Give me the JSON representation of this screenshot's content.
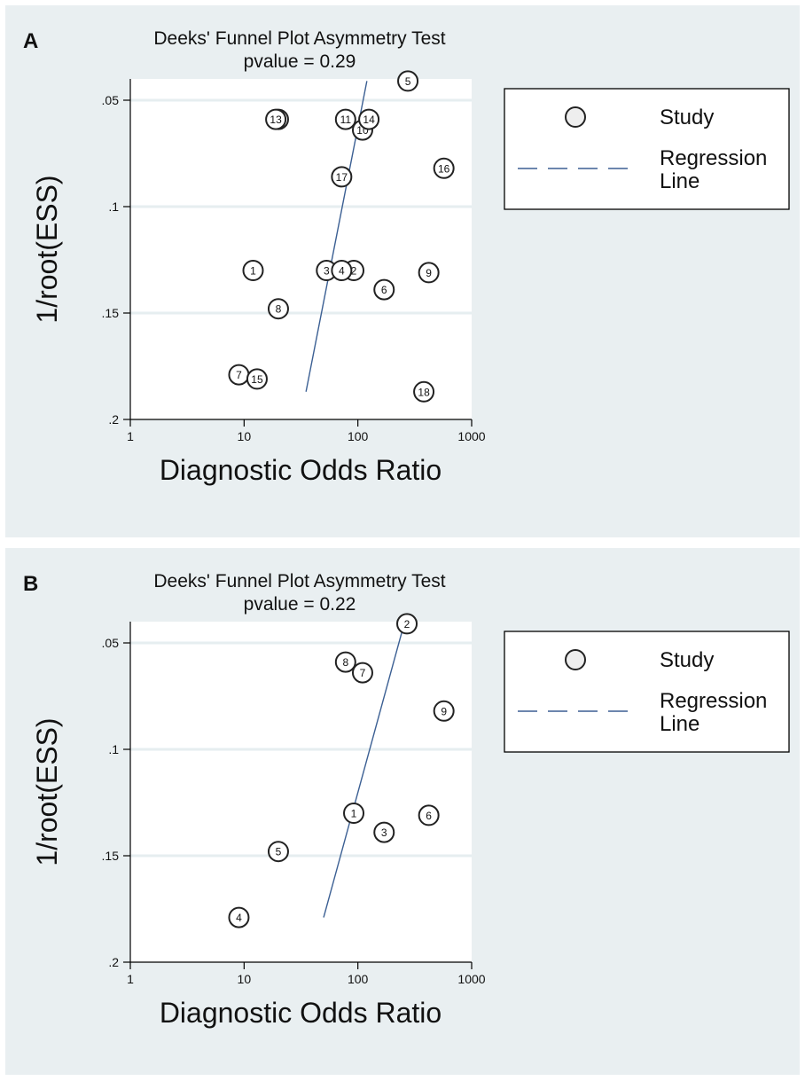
{
  "chart_data": [
    {
      "type": "scatter",
      "panel_label": "A",
      "title": "Deeks' Funnel Plot Asymmetry Test",
      "subtitle": "pvalue  =   0.29",
      "xlabel": "Diagnostic Odds Ratio",
      "ylabel": "1/root(ESS)",
      "x_scale": "log",
      "xlim": [
        1,
        1000
      ],
      "ylim": [
        0.2,
        0.04
      ],
      "y_inverted": true,
      "x_ticks": [
        1,
        10,
        100,
        1000
      ],
      "x_tick_labels": [
        "1",
        "10",
        "100",
        "1000"
      ],
      "y_ticks": [
        0.05,
        0.1,
        0.15,
        0.2
      ],
      "y_tick_labels": [
        ".05",
        ".1",
        ".15",
        ".2"
      ],
      "grid": "horizontal",
      "legend": {
        "position": "right",
        "items": [
          "Study",
          "Regression Line"
        ]
      },
      "points": [
        {
          "label": "1",
          "x": 12,
          "y": 0.13
        },
        {
          "label": "2",
          "x": 92,
          "y": 0.13
        },
        {
          "label": "3",
          "x": 53,
          "y": 0.13
        },
        {
          "label": "4",
          "x": 72,
          "y": 0.13
        },
        {
          "label": "5",
          "x": 275,
          "y": 0.041
        },
        {
          "label": "6",
          "x": 170,
          "y": 0.139
        },
        {
          "label": "7",
          "x": 9,
          "y": 0.179
        },
        {
          "label": "8",
          "x": 20,
          "y": 0.148
        },
        {
          "label": "9",
          "x": 420,
          "y": 0.131
        },
        {
          "label": "10",
          "x": 110,
          "y": 0.064
        },
        {
          "label": "11",
          "x": 78,
          "y": 0.059
        },
        {
          "label": "12",
          "x": 20,
          "y": 0.059
        },
        {
          "label": "13",
          "x": 19,
          "y": 0.059
        },
        {
          "label": "14",
          "x": 125,
          "y": 0.059
        },
        {
          "label": "15",
          "x": 13,
          "y": 0.181
        },
        {
          "label": "16",
          "x": 570,
          "y": 0.082
        },
        {
          "label": "17",
          "x": 72,
          "y": 0.086
        },
        {
          "label": "18",
          "x": 380,
          "y": 0.187
        }
      ],
      "regression_line": [
        {
          "x": 35,
          "y": 0.187
        },
        {
          "x": 120,
          "y": 0.041
        }
      ]
    },
    {
      "type": "scatter",
      "panel_label": "B",
      "title": "Deeks' Funnel Plot Asymmetry Test",
      "subtitle": "pvalue  =   0.22",
      "xlabel": "Diagnostic Odds Ratio",
      "ylabel": "1/root(ESS)",
      "x_scale": "log",
      "xlim": [
        1,
        1000
      ],
      "ylim": [
        0.2,
        0.04
      ],
      "y_inverted": true,
      "x_ticks": [
        1,
        10,
        100,
        1000
      ],
      "x_tick_labels": [
        "1",
        "10",
        "100",
        "1000"
      ],
      "y_ticks": [
        0.05,
        0.1,
        0.15,
        0.2
      ],
      "y_tick_labels": [
        ".05",
        ".1",
        ".15",
        ".2"
      ],
      "grid": "horizontal",
      "legend": {
        "position": "right",
        "items": [
          "Study",
          "Regression Line"
        ]
      },
      "points": [
        {
          "label": "1",
          "x": 92,
          "y": 0.13
        },
        {
          "label": "2",
          "x": 270,
          "y": 0.041
        },
        {
          "label": "3",
          "x": 170,
          "y": 0.139
        },
        {
          "label": "4",
          "x": 9,
          "y": 0.179
        },
        {
          "label": "5",
          "x": 20,
          "y": 0.148
        },
        {
          "label": "6",
          "x": 420,
          "y": 0.131
        },
        {
          "label": "7",
          "x": 110,
          "y": 0.064
        },
        {
          "label": "8",
          "x": 78,
          "y": 0.059
        },
        {
          "label": "9",
          "x": 570,
          "y": 0.082
        }
      ],
      "regression_line": [
        {
          "x": 50,
          "y": 0.179
        },
        {
          "x": 255,
          "y": 0.041
        }
      ]
    }
  ],
  "legend": {
    "study_label": "Study",
    "regression_label_line1": "Regression",
    "regression_label_line2": "Line"
  },
  "colors": {
    "background": "#e9eff1",
    "plot_background": "#ffffff",
    "gridline": "#e6eef0",
    "regression": "#3b5f93",
    "marker_fill": "#eeeeee",
    "marker_stroke": "#222222"
  }
}
